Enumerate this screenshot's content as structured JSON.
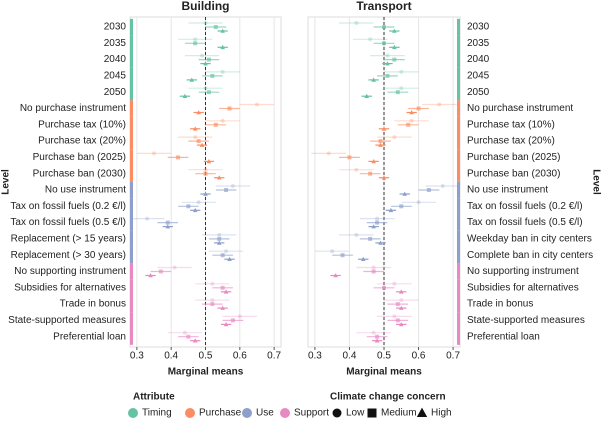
{
  "chart_data": [
    {
      "type": "errorbar",
      "title": "Building",
      "x_label": "Marginal means",
      "y_label": "Level",
      "xlim": [
        0.28,
        0.72
      ],
      "xticks": [
        0.3,
        0.4,
        0.5,
        0.6,
        0.7
      ],
      "ref_line": 0.5,
      "grid": true,
      "categories": [
        "2030",
        "2035",
        "2040",
        "2045",
        "2050",
        "No purchase instrument",
        "Purchase tax (10%)",
        "Purchase tax (20%)",
        "Purchase ban (2025)",
        "Purchase ban (2030)",
        "No use instrument",
        "Tax on fossil fuels (0.2 €/l)",
        "Tax on fossil fuels (0.5 €/l)",
        "Replacement (> 15 years)",
        "Replacement (> 30 years)",
        "No supporting instrument",
        "Subsidies for alternatives",
        "Trade in bonus",
        "State-supported measures",
        "Preferential loan"
      ],
      "category_attribute": [
        "Timing",
        "Timing",
        "Timing",
        "Timing",
        "Timing",
        "Purchase",
        "Purchase",
        "Purchase",
        "Purchase",
        "Purchase",
        "Use",
        "Use",
        "Use",
        "Use",
        "Use",
        "Support",
        "Support",
        "Support",
        "Support",
        "Support"
      ],
      "series": [
        {
          "name": "Low",
          "shape": "circle",
          "opacity": 0.3,
          "error": 0.05,
          "values": [
            0.5,
            0.47,
            0.49,
            0.55,
            0.5,
            0.65,
            0.55,
            0.47,
            0.35,
            0.5,
            0.58,
            0.48,
            0.33,
            0.54,
            0.56,
            0.41,
            0.52,
            0.52,
            0.6,
            0.44
          ]
        },
        {
          "name": "Medium",
          "shape": "square",
          "opacity": 0.65,
          "error": 0.03,
          "values": [
            0.53,
            0.47,
            0.51,
            0.52,
            0.51,
            0.57,
            0.53,
            0.48,
            0.42,
            0.5,
            0.56,
            0.45,
            0.39,
            0.54,
            0.55,
            0.37,
            0.55,
            0.52,
            0.58,
            0.45
          ]
        },
        {
          "name": "High",
          "shape": "triangle",
          "opacity": 1,
          "error": 0.015,
          "values": [
            0.55,
            0.55,
            0.5,
            0.46,
            0.44,
            0.48,
            0.47,
            0.49,
            0.51,
            0.54,
            0.5,
            0.47,
            0.39,
            0.54,
            0.57,
            0.34,
            0.56,
            0.55,
            0.56,
            0.47
          ]
        }
      ]
    },
    {
      "type": "errorbar",
      "title": "Transport",
      "x_label": "Marginal means",
      "y_label": "Level",
      "xlim": [
        0.28,
        0.72
      ],
      "xticks": [
        0.3,
        0.4,
        0.5,
        0.6,
        0.7
      ],
      "ref_line": 0.5,
      "grid": true,
      "categories": [
        "2030",
        "2035",
        "2040",
        "2045",
        "2050",
        "No purchase instrument",
        "Purchase tax (10%)",
        "Purchase tax (20%)",
        "Purchase ban (2025)",
        "Purchase ban (2030)",
        "No use instrument",
        "Tax on fossil fuels (0.2 €/l)",
        "Tax on fossil fuels (0.5 €/l)",
        "Weekday ban in city centers",
        "Complete ban in city centers",
        "No supporting instrument",
        "Subsidies for alternatives",
        "Trade in bonus",
        "State-supported measures",
        "Preferential loan"
      ],
      "category_attribute": [
        "Timing",
        "Timing",
        "Timing",
        "Timing",
        "Timing",
        "Purchase",
        "Purchase",
        "Purchase",
        "Purchase",
        "Purchase",
        "Use",
        "Use",
        "Use",
        "Use",
        "Use",
        "Support",
        "Support",
        "Support",
        "Support",
        "Support"
      ],
      "series": [
        {
          "name": "Low",
          "shape": "circle",
          "opacity": 0.3,
          "error": 0.05,
          "values": [
            0.42,
            0.46,
            0.51,
            0.55,
            0.55,
            0.66,
            0.58,
            0.53,
            0.34,
            0.42,
            0.67,
            0.6,
            0.48,
            0.42,
            0.35,
            0.47,
            0.53,
            0.55,
            0.53,
            0.47
          ]
        },
        {
          "name": "Medium",
          "shape": "square",
          "opacity": 0.65,
          "error": 0.03,
          "values": [
            0.5,
            0.5,
            0.53,
            0.51,
            0.54,
            0.6,
            0.57,
            0.49,
            0.4,
            0.46,
            0.63,
            0.55,
            0.48,
            0.46,
            0.38,
            0.47,
            0.5,
            0.54,
            0.54,
            0.48
          ]
        },
        {
          "name": "High",
          "shape": "triangle",
          "opacity": 1,
          "error": 0.015,
          "values": [
            0.53,
            0.53,
            0.51,
            0.47,
            0.45,
            0.58,
            0.5,
            0.49,
            0.47,
            0.5,
            0.56,
            0.52,
            0.47,
            0.49,
            0.44,
            0.36,
            0.55,
            0.55,
            0.55,
            0.48
          ]
        }
      ]
    }
  ],
  "attribute_title": "Attribute",
  "attributes": [
    {
      "name": "Timing",
      "color": "#66c2a5"
    },
    {
      "name": "Purchase",
      "color": "#fc8d62"
    },
    {
      "name": "Use",
      "color": "#8da0cb"
    },
    {
      "name": "Support",
      "color": "#e78ac3"
    }
  ],
  "concern_title": "Climate change concern"
}
